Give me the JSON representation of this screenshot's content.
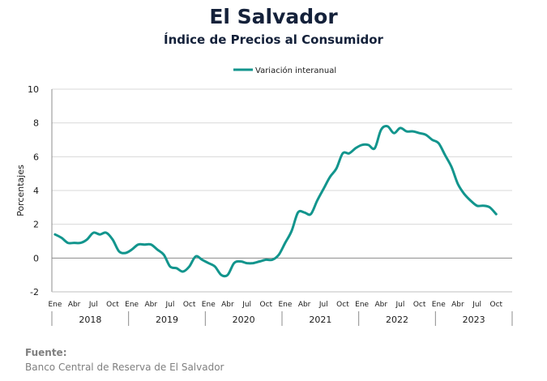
{
  "header": {
    "title": "El Salvador",
    "subtitle": "Índice de Precios al Consumidor"
  },
  "chart_data": {
    "type": "line",
    "ylabel": "Porcentajes",
    "xlabel": "",
    "ylim": [
      -2,
      10
    ],
    "yticks": [
      -2,
      0,
      2,
      4,
      6,
      8,
      10
    ],
    "grid": "horizontal",
    "legend_position": "top-center",
    "month_tick_labels": [
      "Ene",
      "Abr",
      "Jul",
      "Oct"
    ],
    "years": [
      "2018",
      "2019",
      "2020",
      "2021",
      "2022",
      "2023"
    ],
    "series": [
      {
        "name": "Variación interanual",
        "color": "#12958d",
        "x": [
          "2018-01",
          "2018-02",
          "2018-03",
          "2018-04",
          "2018-05",
          "2018-06",
          "2018-07",
          "2018-08",
          "2018-09",
          "2018-10",
          "2018-11",
          "2018-12",
          "2019-01",
          "2019-02",
          "2019-03",
          "2019-04",
          "2019-05",
          "2019-06",
          "2019-07",
          "2019-08",
          "2019-09",
          "2019-10",
          "2019-11",
          "2019-12",
          "2020-01",
          "2020-02",
          "2020-03",
          "2020-04",
          "2020-05",
          "2020-06",
          "2020-07",
          "2020-08",
          "2020-09",
          "2020-10",
          "2020-11",
          "2020-12",
          "2021-01",
          "2021-02",
          "2021-03",
          "2021-04",
          "2021-05",
          "2021-06",
          "2021-07",
          "2021-08",
          "2021-09",
          "2021-10",
          "2021-11",
          "2021-12",
          "2022-01",
          "2022-02",
          "2022-03",
          "2022-04",
          "2022-05",
          "2022-06",
          "2022-07",
          "2022-08",
          "2022-09",
          "2022-10",
          "2022-11",
          "2022-12",
          "2023-01",
          "2023-02",
          "2023-03",
          "2023-04",
          "2023-05",
          "2023-06",
          "2023-07",
          "2023-08",
          "2023-09",
          "2023-10"
        ],
        "values": [
          1.4,
          1.2,
          0.9,
          0.9,
          0.9,
          1.1,
          1.5,
          1.4,
          1.5,
          1.1,
          0.4,
          0.3,
          0.5,
          0.8,
          0.8,
          0.8,
          0.5,
          0.2,
          -0.5,
          -0.6,
          -0.8,
          -0.5,
          0.1,
          -0.1,
          -0.3,
          -0.5,
          -1.0,
          -1.0,
          -0.3,
          -0.2,
          -0.3,
          -0.3,
          -0.2,
          -0.1,
          -0.1,
          0.2,
          0.9,
          1.6,
          2.7,
          2.7,
          2.6,
          3.4,
          4.1,
          4.8,
          5.3,
          6.2,
          6.2,
          6.5,
          6.7,
          6.7,
          6.5,
          7.6,
          7.8,
          7.4,
          7.7,
          7.5,
          7.5,
          7.4,
          7.3,
          7.0,
          6.8,
          6.1,
          5.4,
          4.4,
          3.8,
          3.4,
          3.1,
          3.1,
          3.0,
          2.6
        ]
      }
    ]
  },
  "footer": {
    "source_label": "Fuente:",
    "source_text": "Banco Central de Reserva de El Salvador"
  }
}
